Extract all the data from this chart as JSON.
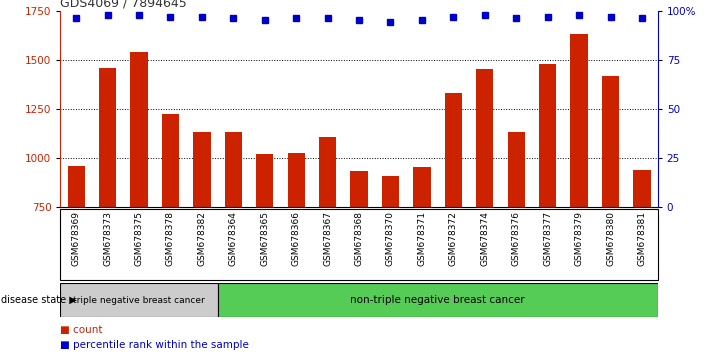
{
  "title": "GDS4069 / 7894645",
  "samples": [
    "GSM678369",
    "GSM678373",
    "GSM678375",
    "GSM678378",
    "GSM678382",
    "GSM678364",
    "GSM678365",
    "GSM678366",
    "GSM678367",
    "GSM678368",
    "GSM678370",
    "GSM678371",
    "GSM678372",
    "GSM678374",
    "GSM678376",
    "GSM678377",
    "GSM678379",
    "GSM678380",
    "GSM678381"
  ],
  "bar_values": [
    960,
    1460,
    1540,
    1225,
    1130,
    1130,
    1020,
    1025,
    1105,
    935,
    910,
    955,
    1330,
    1455,
    1130,
    1480,
    1630,
    1415,
    940
  ],
  "percentile_values": [
    96,
    98,
    98,
    97,
    97,
    96,
    95,
    96,
    96,
    95,
    94,
    95,
    97,
    98,
    96,
    97,
    98,
    97,
    96
  ],
  "bar_color": "#cc2200",
  "dot_color": "#0000cc",
  "ylim_left": [
    750,
    1750
  ],
  "ylim_right": [
    0,
    100
  ],
  "yticks_left": [
    750,
    1000,
    1250,
    1500,
    1750
  ],
  "yticks_right": [
    0,
    25,
    50,
    75,
    100
  ],
  "ytick_right_labels": [
    "0",
    "25",
    "50",
    "75",
    "100%"
  ],
  "grid_values": [
    1000,
    1250,
    1500
  ],
  "triple_neg_label": "triple negative breast cancer",
  "non_triple_neg_label": "non-triple negative breast cancer",
  "triple_neg_count": 5,
  "disease_state_label": "disease state",
  "legend_count_label": "count",
  "legend_pct_label": "percentile rank within the sample",
  "triple_neg_color": "#cccccc",
  "non_triple_neg_color": "#55cc55",
  "bar_width": 0.55,
  "background_color": "#ffffff",
  "title_color": "#333333",
  "left_axis_color": "#cc2200",
  "right_axis_color": "#0000cc"
}
